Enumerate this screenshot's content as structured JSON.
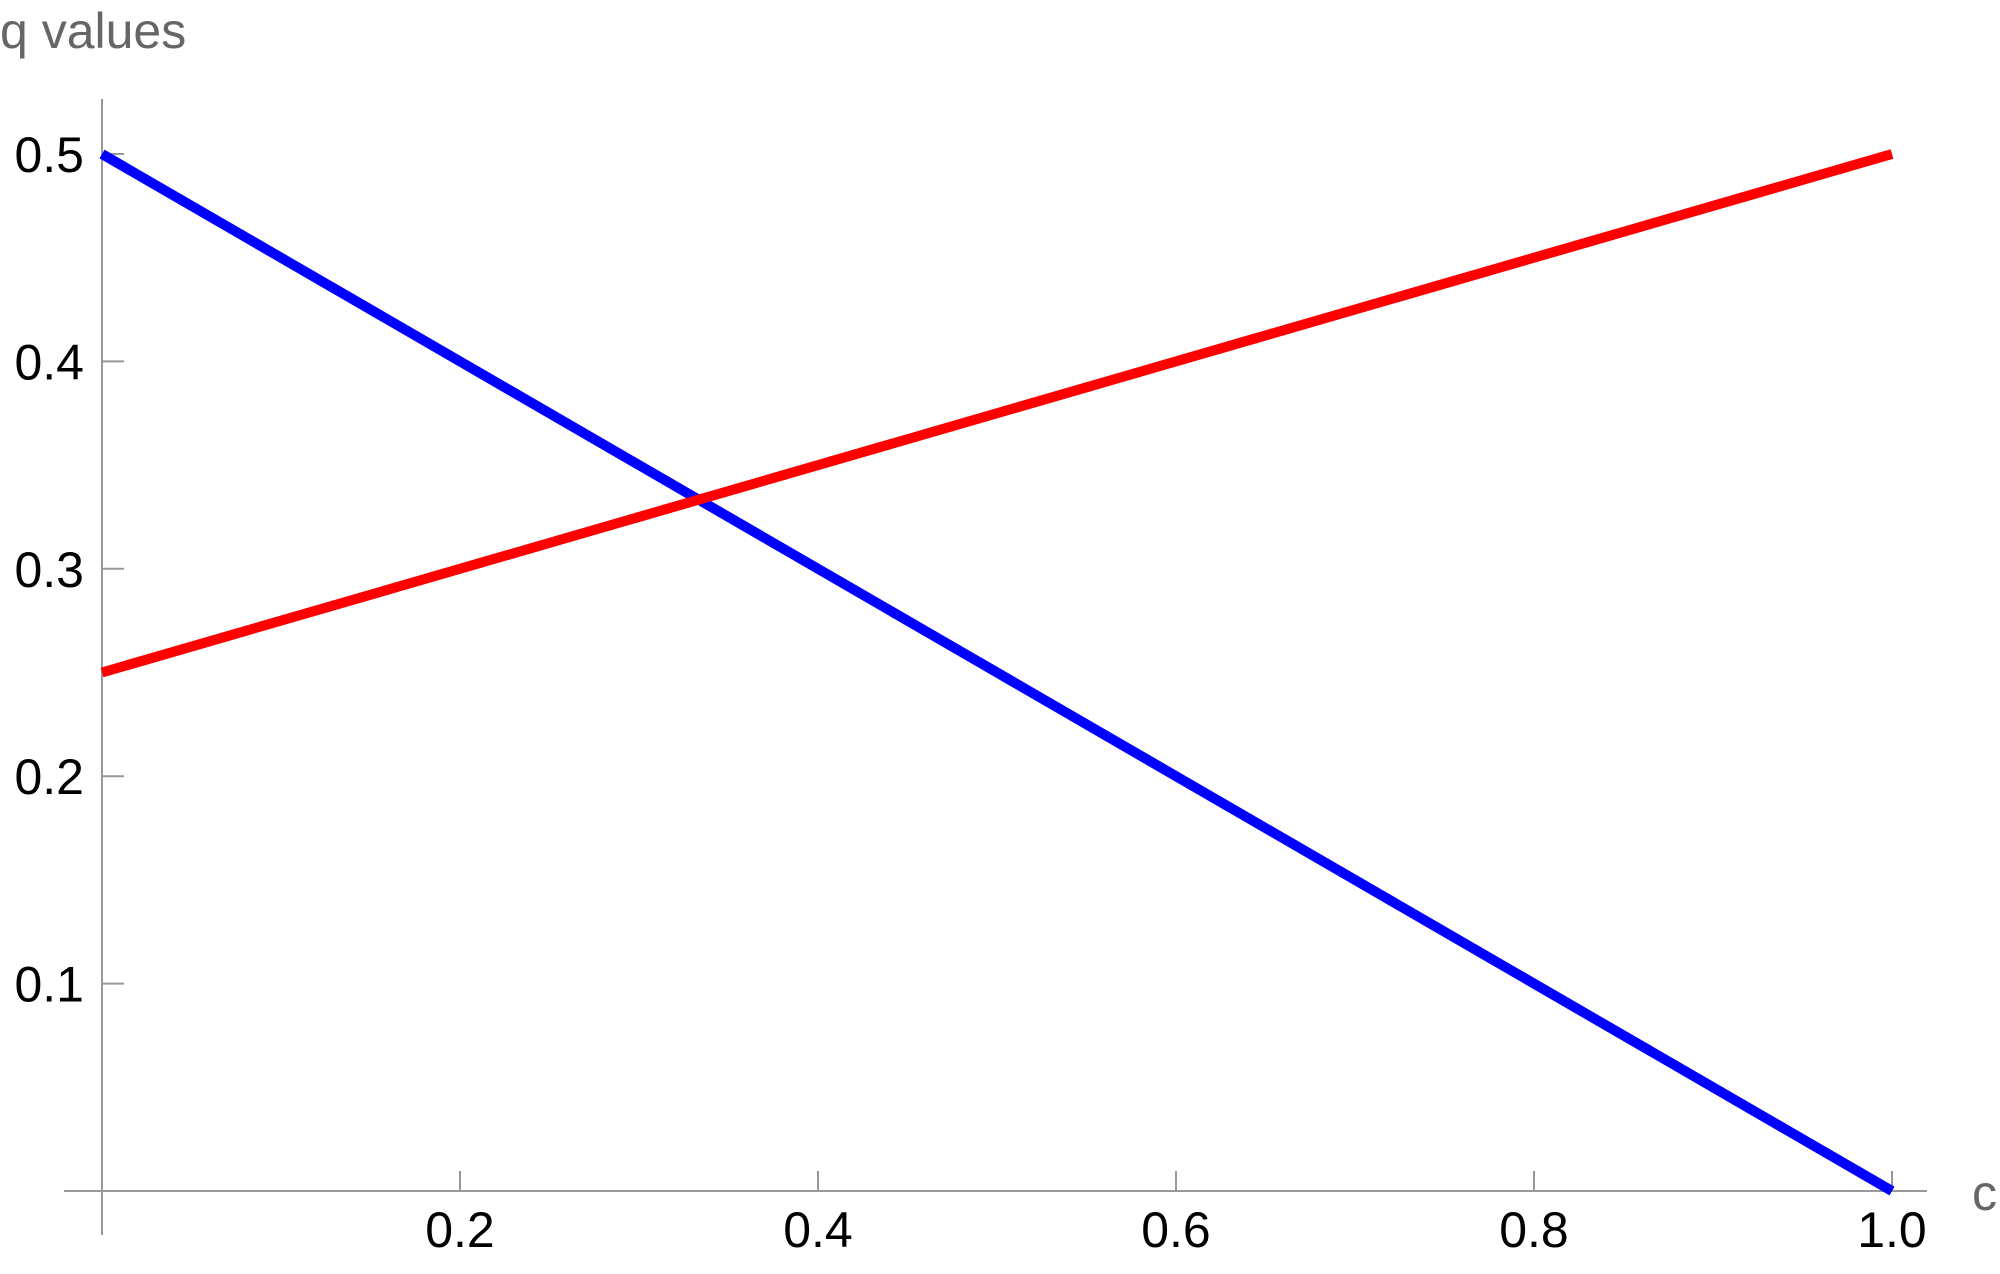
{
  "chart_data": {
    "type": "line",
    "x_label": "c",
    "y_label": "q values",
    "x": [
      0,
      1
    ],
    "series": [
      {
        "color": "#0000ff",
        "values": [
          0.5,
          0
        ]
      },
      {
        "color": "#ff0000",
        "values": [
          0.25,
          0.5
        ]
      }
    ],
    "xlim": [
      0,
      1
    ],
    "ylim": [
      0,
      0.5
    ],
    "xticks": [
      0.2,
      0.4,
      0.6,
      0.8,
      {
        "value": 1,
        "label": "1.0"
      }
    ],
    "yticks": [
      0.1,
      0.2,
      0.3,
      0.4,
      0.5
    ]
  }
}
